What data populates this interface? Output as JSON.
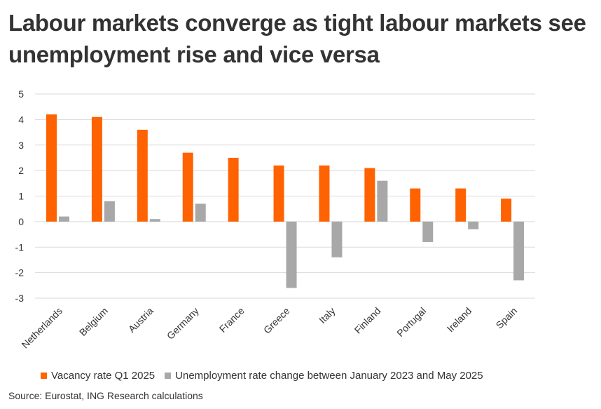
{
  "title": "Labour markets converge as tight labour markets see unemployment rise and vice versa",
  "source": "Source: Eurostat, ING Research calculations",
  "colors": {
    "vacancy": "#FF6200",
    "unemployment": "#A8A8A8",
    "grid": "#D9D9D9"
  },
  "chart_data": {
    "type": "bar",
    "title": "Labour markets converge as tight labour markets see unemployment rise and vice versa",
    "xlabel": "",
    "ylabel": "",
    "ylim": [
      -3,
      5
    ],
    "yticks": [
      5,
      4,
      3,
      2,
      1,
      0,
      -1,
      -2,
      -3
    ],
    "ytick_labels": [
      "5",
      "4",
      "3",
      "2",
      "1",
      "0",
      "-1",
      "-2",
      "-3"
    ],
    "grid": true,
    "legend_position": "bottom",
    "categories": [
      "Netherlands",
      "Belgium",
      "Austria",
      "Germany",
      "France",
      "Greece",
      "Italy",
      "Finland",
      "Portugal",
      "Ireland",
      "Spain"
    ],
    "series": [
      {
        "name": "Vacancy rate Q1 2025",
        "values": [
          4.2,
          4.1,
          3.6,
          2.7,
          2.5,
          2.2,
          2.2,
          2.1,
          1.3,
          1.3,
          0.9
        ]
      },
      {
        "name": "Unemployment rate change between January 2023 and May 2025",
        "values": [
          0.2,
          0.8,
          0.1,
          0.7,
          0.0,
          -2.6,
          -1.4,
          1.6,
          -0.8,
          -0.3,
          -2.3
        ]
      }
    ]
  }
}
